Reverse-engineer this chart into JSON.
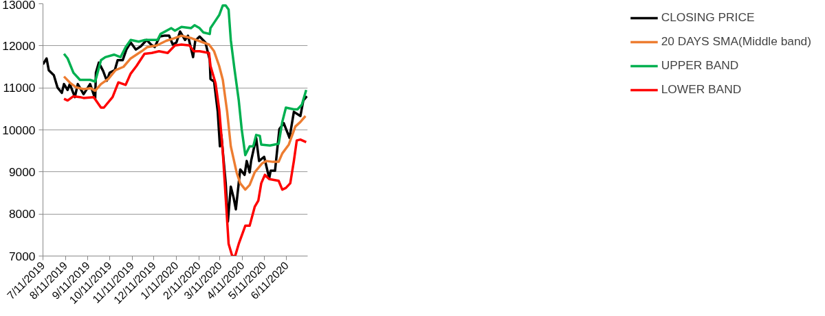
{
  "chart_data": {
    "type": "line",
    "ylim": [
      7000,
      13000
    ],
    "yticks": [
      7000,
      8000,
      9000,
      10000,
      11000,
      12000,
      13000
    ],
    "xlim": [
      "2019-07-11",
      "2020-07-10"
    ],
    "xticks": [
      {
        "value": "2019-07-11",
        "label": "7/11/2019"
      },
      {
        "value": "2019-08-11",
        "label": "8/11/2019"
      },
      {
        "value": "2019-09-11",
        "label": "9/11/2019"
      },
      {
        "value": "2019-10-11",
        "label": "10/11/2019"
      },
      {
        "value": "2019-11-11",
        "label": "11/11/2019"
      },
      {
        "value": "2019-12-11",
        "label": "12/11/2019"
      },
      {
        "value": "2020-01-11",
        "label": "1/11/2020"
      },
      {
        "value": "2020-02-11",
        "label": "2/11/2020"
      },
      {
        "value": "2020-03-11",
        "label": "3/11/2020"
      },
      {
        "value": "2020-04-11",
        "label": "4/11/2020"
      },
      {
        "value": "2020-05-11",
        "label": "5/11/2020"
      },
      {
        "value": "2020-06-11",
        "label": "6/11/2020"
      }
    ],
    "grid": "y",
    "legend": "right",
    "marker": "none",
    "line_style": "solid",
    "series": [
      {
        "name": "CLOSING PRICE",
        "color": "#000000",
        "x": [
          "2019-07-11",
          "2019-07-16",
          "2019-07-19",
          "2019-07-26",
          "2019-07-31",
          "2019-08-06",
          "2019-08-09",
          "2019-08-14",
          "2019-08-17",
          "2019-08-24",
          "2019-08-28",
          "2019-09-05",
          "2019-09-14",
          "2019-09-21",
          "2019-09-22",
          "2019-09-26",
          "2019-10-02",
          "2019-10-07",
          "2019-10-11",
          "2019-10-18",
          "2019-10-22",
          "2019-10-29",
          "2019-11-03",
          "2019-11-09",
          "2019-11-16",
          "2019-11-23",
          "2019-12-01",
          "2019-12-07",
          "2019-12-12",
          "2019-12-19",
          "2019-12-25",
          "2020-01-01",
          "2020-01-06",
          "2020-01-11",
          "2020-01-16",
          "2020-01-23",
          "2020-01-27",
          "2020-02-03",
          "2020-02-06",
          "2020-02-12",
          "2020-02-20",
          "2020-02-26",
          "2020-02-27",
          "2020-03-03",
          "2020-03-08",
          "2020-03-11",
          "2020-03-13",
          "2020-03-19",
          "2020-03-22",
          "2020-03-26",
          "2020-03-30",
          "2020-04-02",
          "2020-04-08",
          "2020-04-14",
          "2020-04-17",
          "2020-04-21",
          "2020-04-23",
          "2020-04-30",
          "2020-05-04",
          "2020-05-11",
          "2020-05-18",
          "2020-05-20",
          "2020-05-26",
          "2020-06-01",
          "2020-06-07",
          "2020-06-15",
          "2020-06-21",
          "2020-06-30",
          "2020-07-04",
          "2020-07-09"
        ],
        "values": [
          11560,
          11700,
          11420,
          11300,
          11010,
          10880,
          11090,
          10950,
          11090,
          10780,
          11090,
          10850,
          11090,
          10740,
          11360,
          11600,
          11400,
          11170,
          11360,
          11420,
          11660,
          11660,
          11910,
          12080,
          11910,
          11990,
          12140,
          12030,
          11970,
          12220,
          12240,
          12240,
          12030,
          12080,
          12340,
          12140,
          12240,
          11730,
          12120,
          12220,
          12080,
          11660,
          11210,
          11150,
          10430,
          9610,
          9880,
          8730,
          7820,
          8650,
          8380,
          8110,
          9060,
          8930,
          9260,
          8990,
          9260,
          9810,
          9260,
          9360,
          8850,
          9030,
          9030,
          10020,
          10160,
          9810,
          10430,
          10330,
          10700,
          10800
        ]
      },
      {
        "name": "20 DAYS SMA(Middle band)",
        "color": "#ed7d31",
        "x": [
          "2019-08-09",
          "2019-08-18",
          "2019-08-26",
          "2019-09-05",
          "2019-09-15",
          "2019-09-21",
          "2019-09-29",
          "2019-10-09",
          "2019-10-19",
          "2019-10-30",
          "2019-11-09",
          "2019-11-24",
          "2019-12-02",
          "2019-12-15",
          "2019-12-28",
          "2020-01-08",
          "2020-01-18",
          "2020-02-01",
          "2020-02-25",
          "2020-03-03",
          "2020-03-10",
          "2020-03-15",
          "2020-03-21",
          "2020-03-26",
          "2020-04-03",
          "2020-04-08",
          "2020-04-15",
          "2020-04-21",
          "2020-04-28",
          "2020-05-08",
          "2020-05-14",
          "2020-05-23",
          "2020-05-31",
          "2020-06-05",
          "2020-06-14",
          "2020-06-23",
          "2020-06-30",
          "2020-07-07"
        ],
        "values": [
          11270,
          11110,
          11010,
          10970,
          10990,
          10930,
          11090,
          11210,
          11420,
          11500,
          11700,
          11870,
          11970,
          12010,
          12120,
          12180,
          12240,
          12180,
          12030,
          11870,
          11520,
          11190,
          10430,
          9610,
          8990,
          8730,
          8580,
          8690,
          8990,
          9200,
          9260,
          9240,
          9240,
          9440,
          9650,
          10080,
          10190,
          10330
        ]
      },
      {
        "name": "UPPER BAND",
        "color": "#00b050",
        "x": [
          "2019-08-09",
          "2019-08-14",
          "2019-08-22",
          "2019-08-31",
          "2019-09-14",
          "2019-09-21",
          "2019-09-29",
          "2019-10-05",
          "2019-10-17",
          "2019-10-26",
          "2019-11-02",
          "2019-11-09",
          "2019-11-20",
          "2019-11-29",
          "2019-12-16",
          "2019-12-20",
          "2020-01-04",
          "2020-01-09",
          "2020-01-18",
          "2020-01-31",
          "2020-02-05",
          "2020-02-12",
          "2020-02-17",
          "2020-02-26",
          "2020-02-27",
          "2020-03-03",
          "2020-03-10",
          "2020-03-15",
          "2020-03-19",
          "2020-03-23",
          "2020-03-26",
          "2020-03-31",
          "2020-04-06",
          "2020-04-10",
          "2020-04-15",
          "2020-04-21",
          "2020-04-26",
          "2020-04-30",
          "2020-05-05",
          "2020-05-07",
          "2020-05-19",
          "2020-05-31",
          "2020-06-05",
          "2020-06-10",
          "2020-06-21",
          "2020-06-26",
          "2020-07-02",
          "2020-07-08"
        ],
        "values": [
          11810,
          11700,
          11360,
          11190,
          11190,
          11150,
          11660,
          11730,
          11790,
          11730,
          11970,
          12140,
          12100,
          12140,
          12140,
          12280,
          12420,
          12360,
          12450,
          12420,
          12490,
          12420,
          12320,
          12280,
          12420,
          12550,
          12730,
          12960,
          12960,
          12860,
          12140,
          11460,
          10700,
          10020,
          9400,
          9610,
          9610,
          9880,
          9860,
          9650,
          9630,
          9670,
          10190,
          10530,
          10490,
          10490,
          10600,
          10950
        ]
      },
      {
        "name": "LOWER BAND",
        "color": "#ff0000",
        "x": [
          "2019-08-09",
          "2019-08-14",
          "2019-08-22",
          "2019-08-31",
          "2019-09-05",
          "2019-09-19",
          "2019-09-29",
          "2019-10-03",
          "2019-10-15",
          "2019-10-23",
          "2019-11-02",
          "2019-11-09",
          "2019-11-17",
          "2019-11-28",
          "2019-12-08",
          "2019-12-18",
          "2019-12-30",
          "2020-01-09",
          "2020-01-18",
          "2020-01-29",
          "2020-02-04",
          "2020-02-12",
          "2020-02-25",
          "2020-02-27",
          "2020-03-05",
          "2020-03-10",
          "2020-03-15",
          "2020-03-19",
          "2020-03-23",
          "2020-03-28",
          "2020-04-01",
          "2020-04-06",
          "2020-04-15",
          "2020-04-21",
          "2020-04-28",
          "2020-05-03",
          "2020-05-07",
          "2020-05-12",
          "2020-05-18",
          "2020-05-31",
          "2020-06-05",
          "2020-06-10",
          "2020-06-16",
          "2020-06-21",
          "2020-06-25",
          "2020-06-30",
          "2020-07-08"
        ],
        "values": [
          10740,
          10700,
          10800,
          10780,
          10760,
          10780,
          10530,
          10530,
          10780,
          11130,
          11070,
          11340,
          11520,
          11810,
          11830,
          11870,
          11830,
          12010,
          12030,
          12010,
          11870,
          11870,
          11830,
          11520,
          11110,
          10490,
          9470,
          8380,
          7290,
          7000,
          7000,
          7290,
          7720,
          7720,
          8170,
          8320,
          8730,
          8930,
          8830,
          8790,
          8580,
          8620,
          8730,
          9260,
          9750,
          9770,
          9710
        ]
      }
    ]
  }
}
